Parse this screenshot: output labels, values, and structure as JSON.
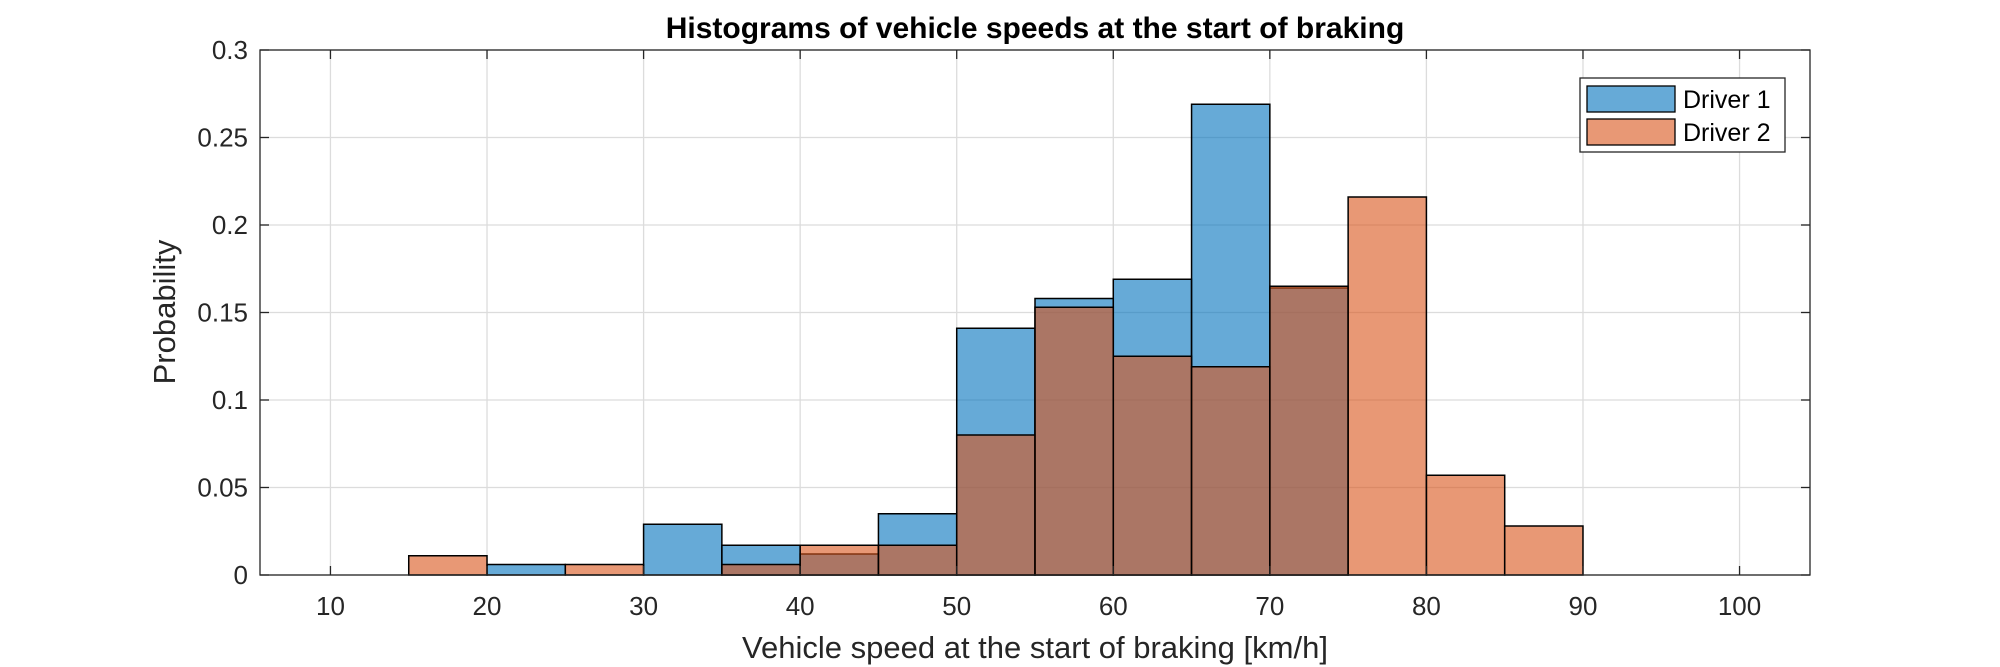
{
  "chart_data": {
    "type": "bar",
    "title": "Histograms of vehicle speeds at the start of braking",
    "xlabel": "Vehicle speed at the start of braking [km/h]",
    "ylabel": "Probability",
    "xlim": [
      5.5,
      104.5
    ],
    "ylim": [
      0,
      0.3
    ],
    "xticks": [
      10,
      20,
      30,
      40,
      50,
      60,
      70,
      80,
      90,
      100
    ],
    "xtick_labels": [
      "10",
      "20",
      "30",
      "40",
      "50",
      "60",
      "70",
      "80",
      "90",
      "100"
    ],
    "yticks": [
      0,
      0.05,
      0.1,
      0.15,
      0.2,
      0.25,
      0.3
    ],
    "ytick_labels": [
      "0",
      "0.05",
      "0.1",
      "0.15",
      "0.2",
      "0.25",
      "0.3"
    ],
    "grid": true,
    "legend_position": "top-right",
    "bin_edges": [
      15,
      20,
      25,
      30,
      35,
      40,
      45,
      50,
      55,
      60,
      65,
      70,
      75,
      80,
      85,
      90
    ],
    "series": [
      {
        "name": "Driver 1",
        "color": "#0072BD",
        "values": [
          0,
          0.006,
          0,
          0.029,
          0.017,
          0.012,
          0.035,
          0.141,
          0.158,
          0.169,
          0.269,
          0.164,
          0,
          0,
          0
        ]
      },
      {
        "name": "Driver 2",
        "color": "#D95319",
        "values": [
          0.011,
          0,
          0.006,
          0,
          0.006,
          0.017,
          0.017,
          0.08,
          0.153,
          0.125,
          0.119,
          0.165,
          0.216,
          0.057,
          0.028
        ]
      }
    ]
  }
}
